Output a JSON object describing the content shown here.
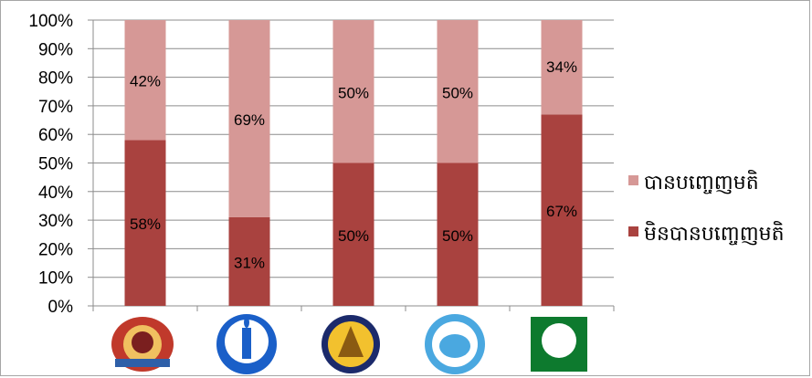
{
  "chart_data": {
    "type": "bar",
    "stacked": true,
    "percent": true,
    "categories": [
      "",
      "",
      "",
      "",
      ""
    ],
    "category_icons": [
      "red-emblem-logo",
      "blue-candle-logo",
      "yellow-temple-logo",
      "blue-map-logo",
      "green-circle-logo"
    ],
    "yticks": [
      "0%",
      "10%",
      "20%",
      "30%",
      "40%",
      "50%",
      "60%",
      "70%",
      "80%",
      "90%",
      "100%"
    ],
    "ylim": [
      0,
      100
    ],
    "grid": true,
    "legend_position": "right",
    "series": [
      {
        "name": "មិនបានបញ្ចេញមតិ",
        "color": "#a9423f",
        "values": [
          58,
          31,
          50,
          50,
          67
        ],
        "labels": [
          "58%",
          "31%",
          "50%",
          "50%",
          "67%"
        ]
      },
      {
        "name": "បានបញ្ចេញមតិ",
        "color": "#d69896",
        "values": [
          42,
          69,
          50,
          50,
          34
        ],
        "labels": [
          "42%",
          "69%",
          "50%",
          "50%",
          "34%"
        ]
      }
    ]
  }
}
